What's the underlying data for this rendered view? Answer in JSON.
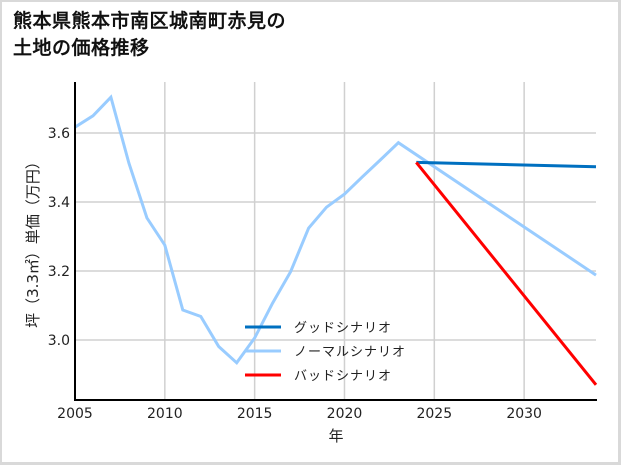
{
  "title": {
    "line1": "熊本県熊本市南区城南町赤見の",
    "line2": "土地の価格推移"
  },
  "chart_data": {
    "type": "line",
    "title": "熊本県熊本市南区城南町赤見の土地の価格推移",
    "xlabel": "年",
    "ylabel": "坪（3.3㎡）単価（万円）",
    "xlim": [
      2005,
      2034
    ],
    "ylim": [
      2.826,
      3.748
    ],
    "xticks": [
      2005,
      2010,
      2015,
      2020,
      2025,
      2030
    ],
    "yticks": [
      3.0,
      3.2,
      3.4,
      3.6
    ],
    "ytick_labels": [
      "3.0",
      "3.2",
      "3.4",
      "3.6"
    ],
    "grid": true,
    "legend_position": "lower center (inside plot)",
    "series": [
      {
        "name": "ノーマルシナリオ",
        "color": "#99ccff",
        "x": [
          2005,
          2006,
          2007,
          2008,
          2009,
          2010,
          2011,
          2012,
          2013,
          2014,
          2015,
          2016,
          2017,
          2018,
          2019,
          2020,
          2021,
          2022,
          2023,
          2034
        ],
        "values": [
          3.617,
          3.65,
          3.704,
          3.513,
          3.354,
          3.275,
          3.087,
          3.068,
          2.981,
          2.934,
          3.006,
          3.107,
          3.198,
          3.324,
          3.385,
          3.423,
          3.473,
          3.522,
          3.572,
          3.188
        ]
      },
      {
        "name": "グッドシナリオ",
        "color": "#0070c0",
        "x": [
          2024,
          2034
        ],
        "values": [
          3.515,
          3.502
        ]
      },
      {
        "name": "バッドシナリオ",
        "color": "#ff0000",
        "x": [
          2024,
          2034
        ],
        "values": [
          3.515,
          2.87
        ]
      }
    ],
    "legend": [
      {
        "name": "グッドシナリオ",
        "color": "#0070c0"
      },
      {
        "name": "ノーマルシナリオ",
        "color": "#99ccff"
      },
      {
        "name": "バッドシナリオ",
        "color": "#ff0000"
      }
    ]
  }
}
